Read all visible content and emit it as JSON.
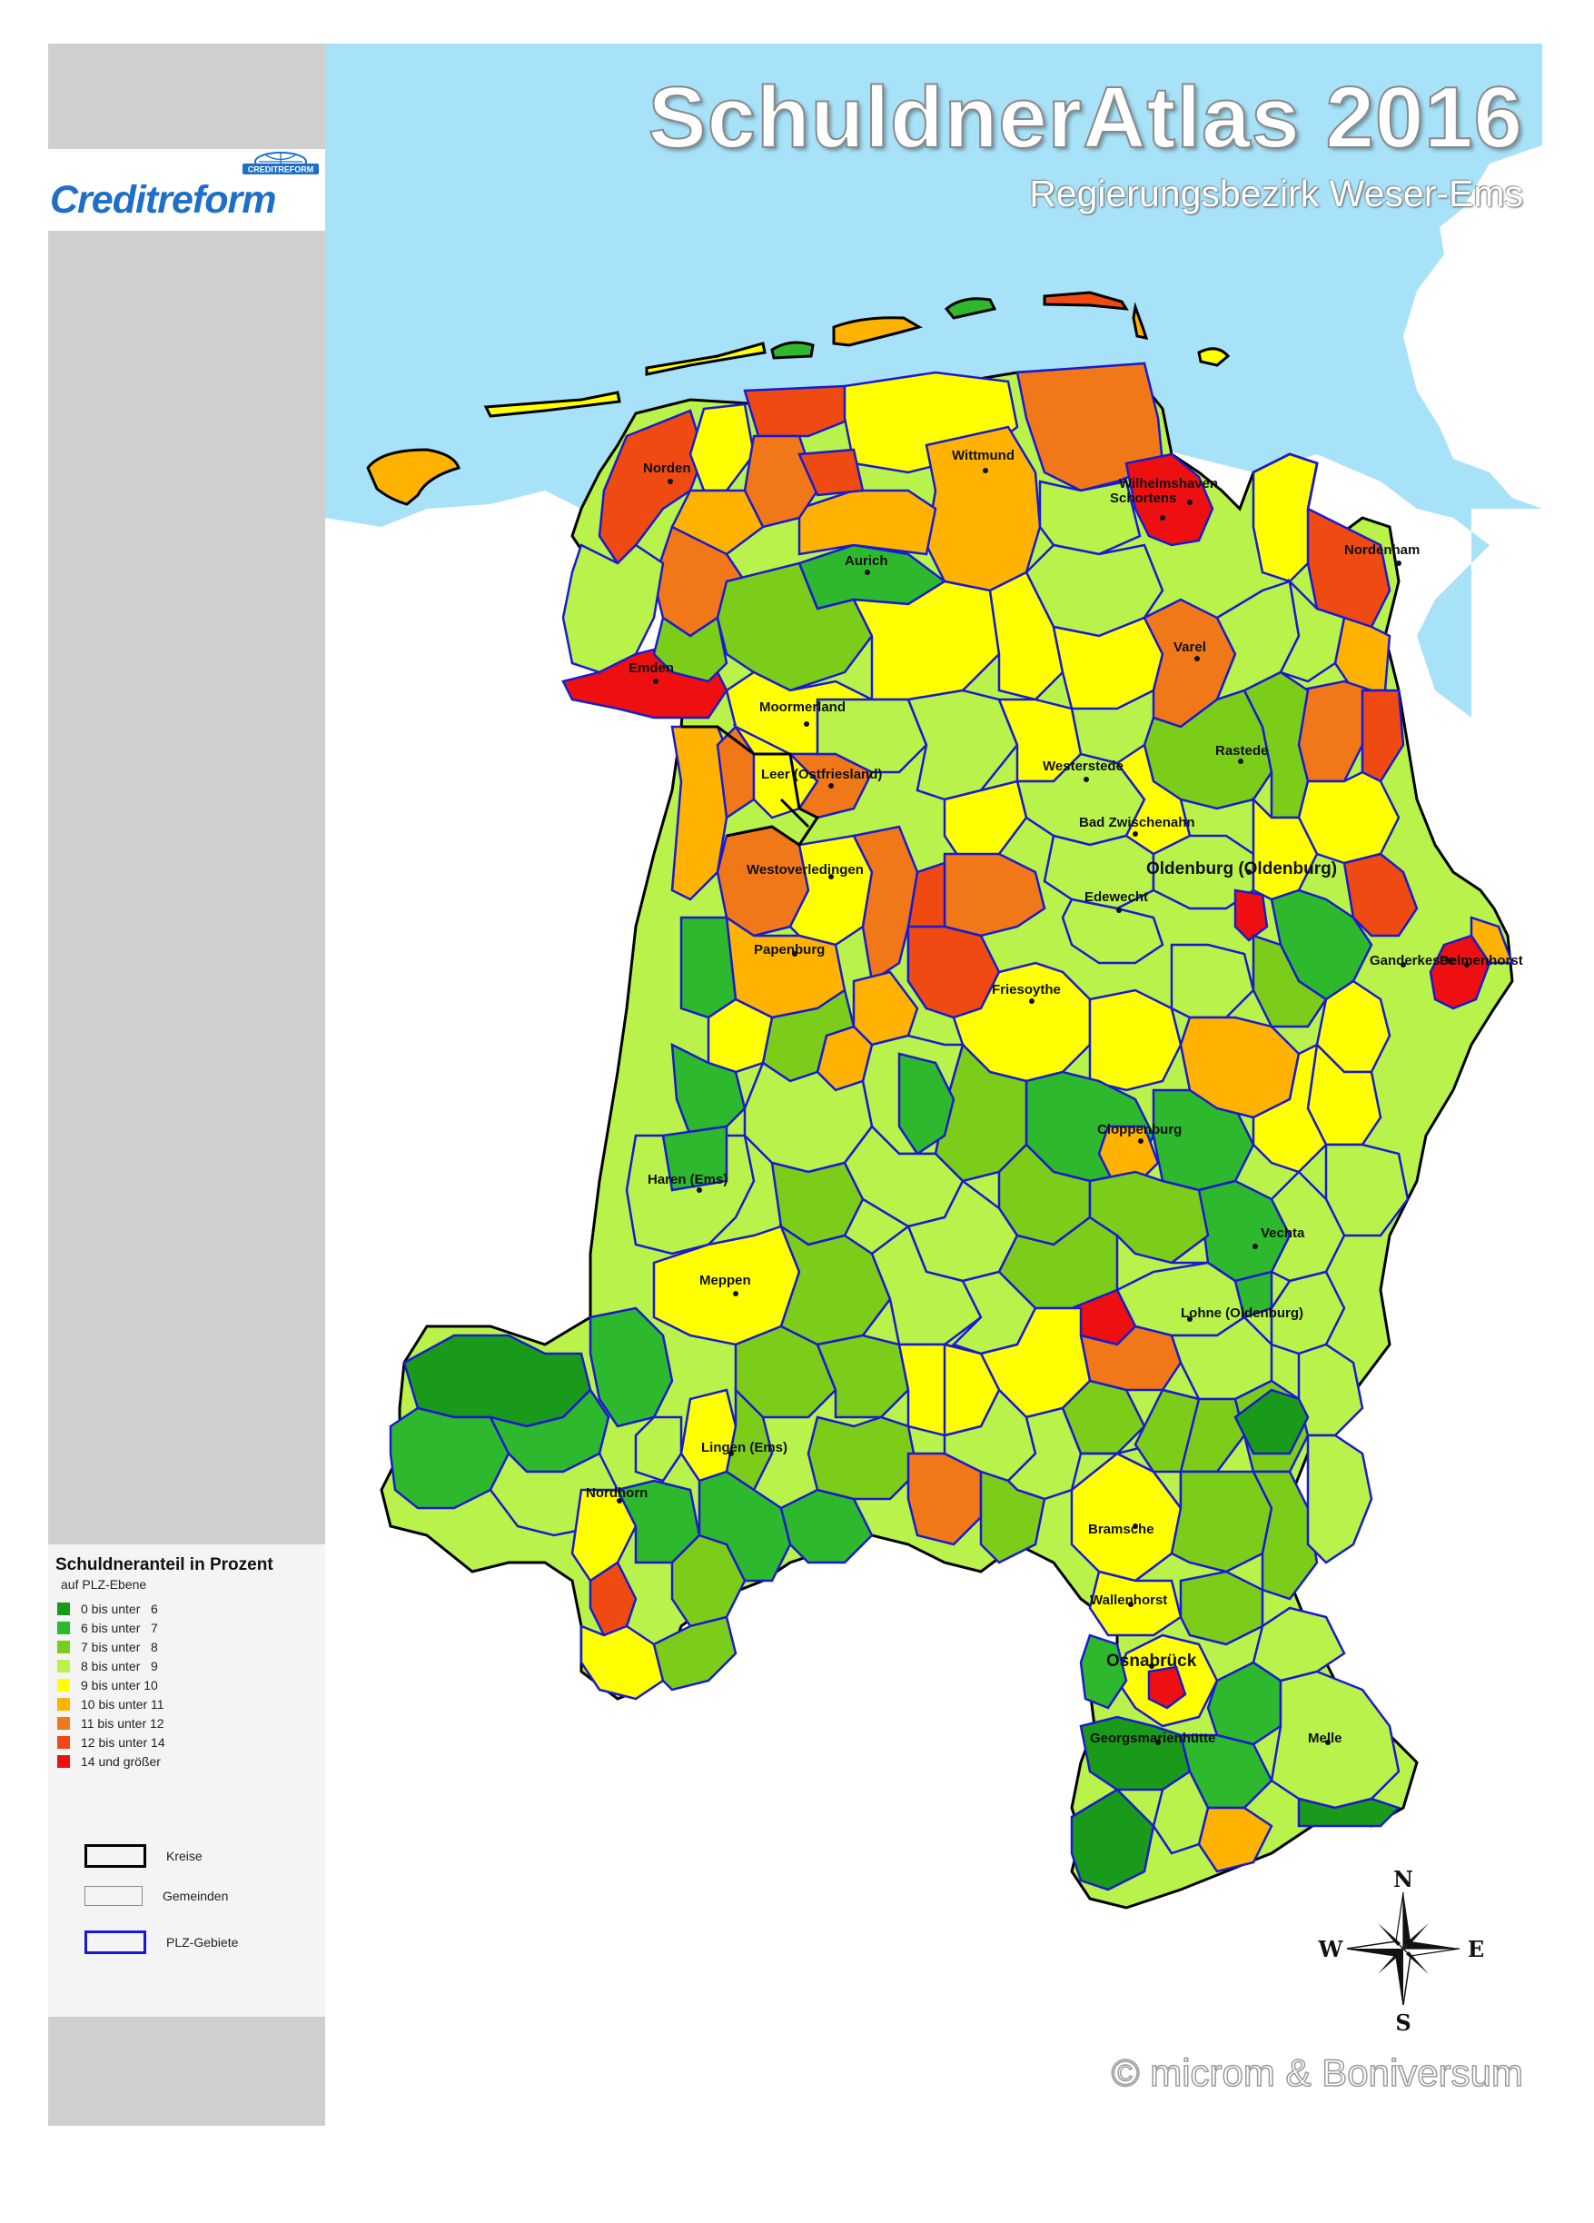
{
  "header": {
    "title": "SchuldnerAtlas 2016",
    "subtitle": "Regierungsbezirk Weser-Ems",
    "copyright": "© microm & Boniversum"
  },
  "brand": {
    "name": "Creditreform",
    "emblem_text": "CREDITREFORM",
    "color": "#1d6fc8"
  },
  "legend": {
    "title": "Schuldneranteil in Prozent",
    "subtitle": "auf PLZ-Ebene",
    "classes": [
      {
        "label": "0 bis unter   6",
        "color": "#1a9a1a"
      },
      {
        "label": "6 bis unter   7",
        "color": "#2db82d"
      },
      {
        "label": "7 bis unter   8",
        "color": "#7ccd1a"
      },
      {
        "label": "8 bis unter   9",
        "color": "#b8f24a"
      },
      {
        "label": "9 bis unter 10",
        "color": "#ffff00"
      },
      {
        "label": "10 bis unter 11",
        "color": "#ffb300"
      },
      {
        "label": "11 bis unter 12",
        "color": "#f07818"
      },
      {
        "label": "12 bis unter 14",
        "color": "#ee4a12"
      },
      {
        "label": "14 und größer",
        "color": "#ee1010"
      }
    ],
    "boundaries": [
      {
        "label": "Kreise",
        "color": "#000000"
      },
      {
        "label": "Gemeinden",
        "color": "#8a8a8a"
      },
      {
        "label": "PLZ-Gebiete",
        "color": "#1a1ad0"
      }
    ]
  },
  "map": {
    "cities": [
      {
        "name": "Norden"
      },
      {
        "name": "Wittmund"
      },
      {
        "name": "Wilhelmshaven"
      },
      {
        "name": "Schortens"
      },
      {
        "name": "Aurich"
      },
      {
        "name": "Nordenham"
      },
      {
        "name": "Emden"
      },
      {
        "name": "Varel"
      },
      {
        "name": "Moormerland"
      },
      {
        "name": "Rastede"
      },
      {
        "name": "Westerstede"
      },
      {
        "name": "Leer (Ostfriesland)"
      },
      {
        "name": "Bad Zwischenahn"
      },
      {
        "name": "Westoverledingen"
      },
      {
        "name": "Oldenburg (Oldenburg)"
      },
      {
        "name": "Edewecht"
      },
      {
        "name": "Papenburg"
      },
      {
        "name": "Ganderkesee"
      },
      {
        "name": "Delmenhorst"
      },
      {
        "name": "Friesoythe"
      },
      {
        "name": "Cloppenburg"
      },
      {
        "name": "Haren (Ems)"
      },
      {
        "name": "Vechta"
      },
      {
        "name": "Meppen"
      },
      {
        "name": "Lohne (Oldenburg)"
      },
      {
        "name": "Lingen (Ems)"
      },
      {
        "name": "Nordhorn"
      },
      {
        "name": "Bramsche"
      },
      {
        "name": "Wallenhorst"
      },
      {
        "name": "Osnabrück"
      },
      {
        "name": "Georgsmarienhütte"
      },
      {
        "name": "Melle"
      }
    ],
    "colors": {
      "sea": "#a8e2f8",
      "land": "#ffffff"
    }
  },
  "compass": {
    "n": "N",
    "s": "S",
    "e": "E",
    "w": "W"
  }
}
